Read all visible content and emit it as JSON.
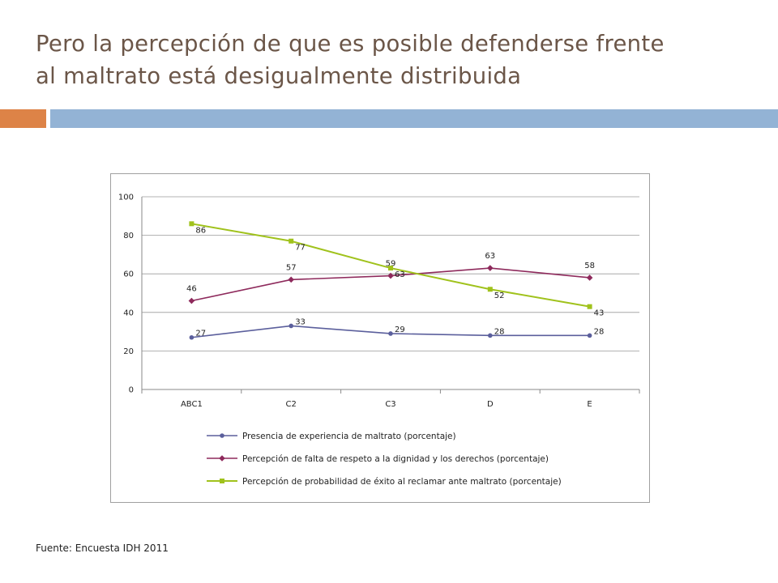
{
  "slide": {
    "title_line1": "Pero la percepción de que es posible defenderse frente",
    "title_line2": "al maltrato está desigualmente distribuida",
    "source": "Fuente: Encuesta IDH 2011"
  },
  "colors": {
    "title": "#6b5648",
    "band_orange": "#dd8347",
    "band_blue": "#93b3d5",
    "series": [
      "#5b5f9c",
      "#8e2a5c",
      "#a0c21c"
    ]
  },
  "chart_data": {
    "type": "line",
    "categories": [
      "ABC1",
      "C2",
      "C3",
      "D",
      "E"
    ],
    "ylim": [
      0,
      100
    ],
    "yticks": [
      0,
      20,
      40,
      60,
      80,
      100
    ],
    "grid": true,
    "legend_position": "bottom",
    "series": [
      {
        "name": "Presencia de experiencia de maltrato (porcentaje)",
        "marker": "circle",
        "values": [
          27,
          33,
          29,
          28,
          28
        ]
      },
      {
        "name": "Percepción de falta de respeto a la dignidad y los derechos (porcentaje)",
        "marker": "diamond",
        "values": [
          46,
          57,
          59,
          63,
          58
        ]
      },
      {
        "name": "Percepción de  probabilidad de éxito al reclamar ante maltrato (porcentaje)",
        "marker": "square",
        "values": [
          86,
          77,
          63,
          52,
          43
        ]
      }
    ]
  }
}
